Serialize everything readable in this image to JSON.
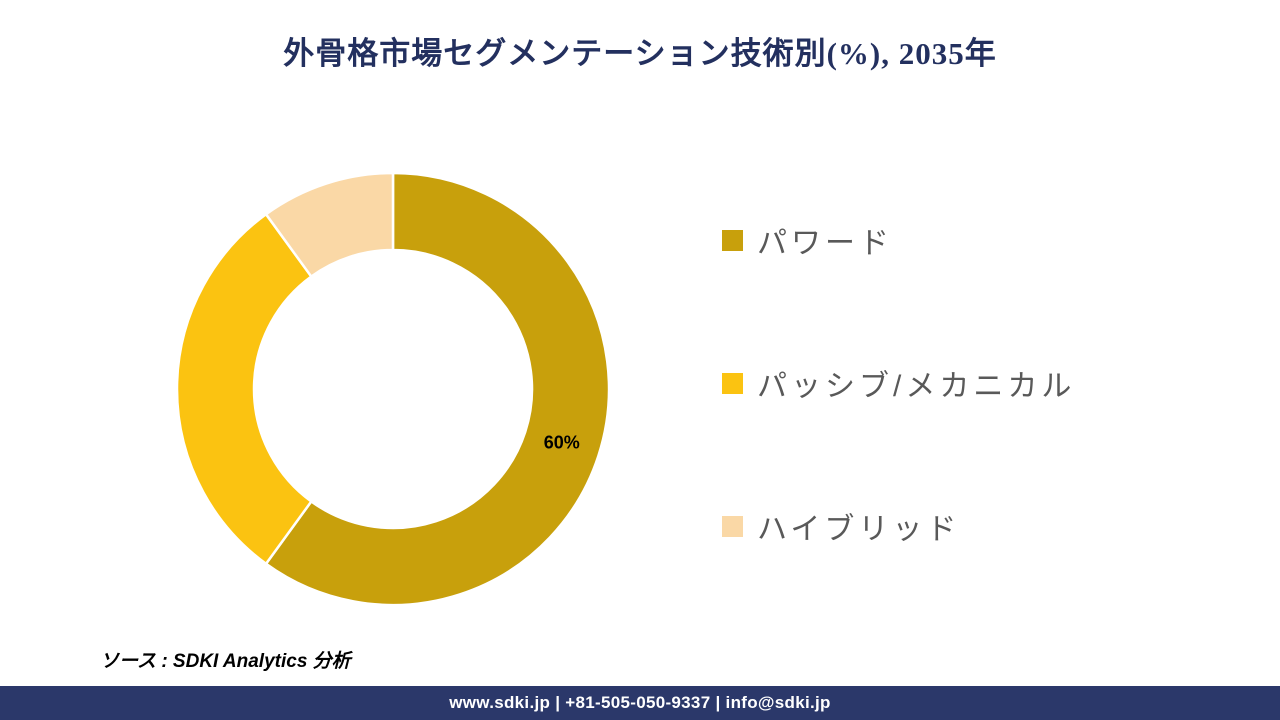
{
  "title": "外骨格市場セグメンテーション技術別(%), 2035年",
  "source_note": "ソース : SDKI Analytics 分析",
  "footer": {
    "text": "www.sdki.jp | +81-505-050-9337 | info@sdki.jp",
    "background": "#2B386A"
  },
  "colors": {
    "title_text": "#23305F",
    "legend_text": "#595959",
    "slice_separator": "#FFFFFF",
    "data_label_text": "#000000"
  },
  "chart_data": {
    "type": "pie",
    "variant": "donut",
    "title": "外骨格市場セグメンテーション技術別(%), 2035年",
    "start_angle_deg": 0,
    "direction": "clockwise",
    "legend_position": "right",
    "slices": [
      {
        "name": "パワード",
        "value": 60,
        "color": "#C8A00C",
        "label": "60%"
      },
      {
        "name": "パッシブ/メカニカル",
        "value": 30,
        "color": "#FBC311",
        "label": ""
      },
      {
        "name": "ハイブリッド",
        "value": 10,
        "color": "#FAD8A6",
        "label": ""
      }
    ]
  }
}
